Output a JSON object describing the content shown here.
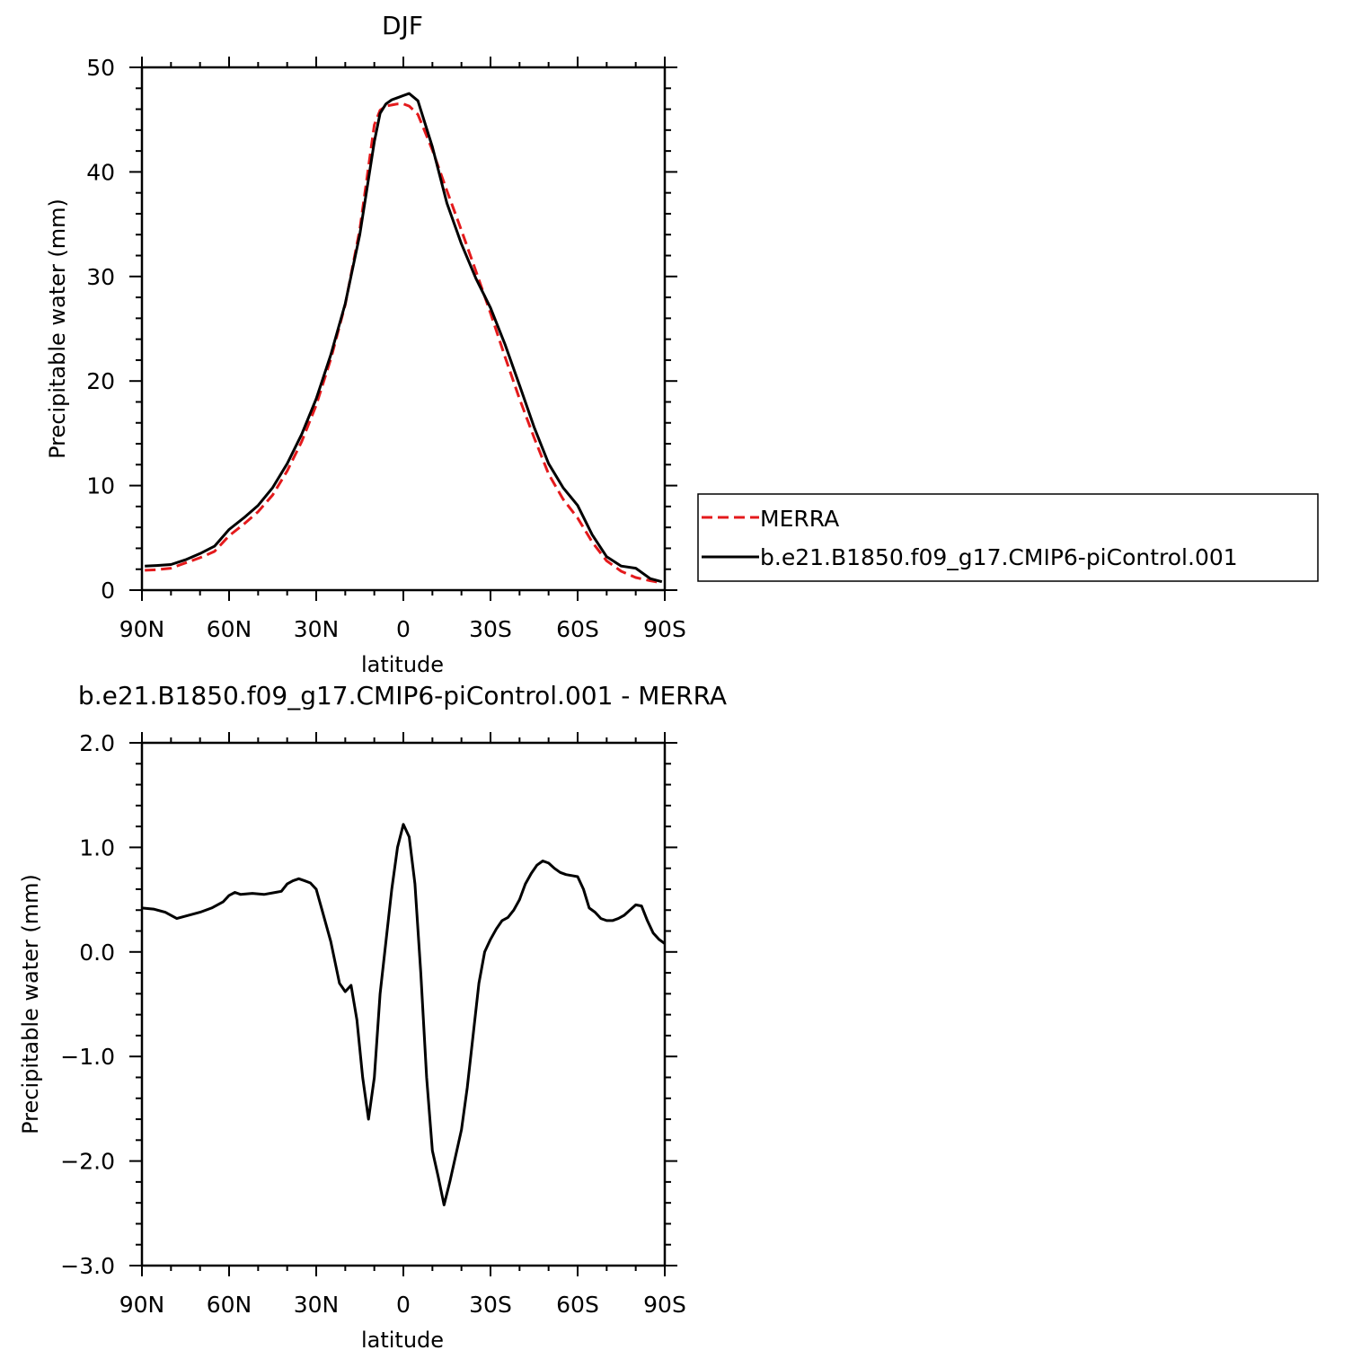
{
  "colors": {
    "merra": "#e41a1c",
    "model": "#000000"
  },
  "chart_data": [
    {
      "type": "line",
      "title": "DJF",
      "xlabel": "latitude",
      "ylabel": "Precipitable water (mm)",
      "xlim": [
        90,
        -90
      ],
      "ylim": [
        0,
        50
      ],
      "xticks": [
        90,
        60,
        30,
        0,
        -30,
        -60,
        -90
      ],
      "xtick_labels": [
        "90N",
        "60N",
        "30N",
        "0",
        "30S",
        "60S",
        "90S"
      ],
      "yticks": [
        0,
        10,
        20,
        30,
        40,
        50
      ],
      "ytick_labels": [
        "0",
        "10",
        "20",
        "30",
        "40",
        "50"
      ],
      "grid": false,
      "legend": {
        "placement": "right",
        "entries": [
          "MERRA",
          "b.e21.B1850.f09_g17.CMIP6-piControl.001"
        ]
      },
      "series": [
        {
          "name": "MERRA",
          "style": "dashed",
          "color": "#e41a1c",
          "x": [
            89,
            85,
            80,
            75,
            70,
            65,
            60,
            55,
            50,
            45,
            40,
            35,
            30,
            25,
            20,
            15,
            10,
            8,
            6,
            4,
            2,
            0,
            -2,
            -5,
            -10,
            -15,
            -20,
            -25,
            -30,
            -35,
            -40,
            -45,
            -50,
            -55,
            -60,
            -65,
            -70,
            -75,
            -80,
            -85,
            -89
          ],
          "y": [
            1.9,
            1.95,
            2.1,
            2.6,
            3.1,
            3.7,
            5.2,
            6.3,
            7.5,
            9.1,
            11.4,
            14.2,
            17.7,
            22.1,
            27.3,
            34.5,
            44.5,
            45.9,
            46.3,
            46.4,
            46.5,
            46.5,
            46.3,
            45.5,
            42.1,
            38.2,
            34.4,
            30.5,
            26.5,
            22.3,
            18.3,
            14.6,
            11.1,
            8.7,
            6.9,
            4.6,
            2.8,
            1.8,
            1.2,
            0.9,
            0.7
          ]
        },
        {
          "name": "b.e21.B1850.f09_g17.CMIP6-piControl.001",
          "style": "solid",
          "color": "#000000",
          "x": [
            89,
            85,
            80,
            75,
            70,
            65,
            60,
            55,
            50,
            45,
            40,
            35,
            30,
            25,
            20,
            15,
            10,
            8,
            6,
            4,
            2,
            0,
            -2,
            -5,
            -10,
            -15,
            -20,
            -25,
            -30,
            -35,
            -40,
            -45,
            -50,
            -55,
            -60,
            -65,
            -70,
            -75,
            -80,
            -85,
            -89
          ],
          "y": [
            2.3,
            2.35,
            2.45,
            2.9,
            3.5,
            4.2,
            5.8,
            6.9,
            8.1,
            9.8,
            12.1,
            14.9,
            18.3,
            22.5,
            27.4,
            34.0,
            42.9,
            45.6,
            46.5,
            46.9,
            47.1,
            47.3,
            47.5,
            46.8,
            42.4,
            37.0,
            33.1,
            29.8,
            27.0,
            23.5,
            19.6,
            15.6,
            12.1,
            9.8,
            8.1,
            5.3,
            3.2,
            2.3,
            2.1,
            1.1,
            0.8
          ]
        }
      ]
    },
    {
      "type": "line",
      "title": "b.e21.B1850.f09_g17.CMIP6-piControl.001 - MERRA",
      "xlabel": "latitude",
      "ylabel": "Precipitable water (mm)",
      "xlim": [
        90,
        -90
      ],
      "ylim": [
        -3.0,
        2.0
      ],
      "xticks": [
        90,
        60,
        30,
        0,
        -30,
        -60,
        -90
      ],
      "xtick_labels": [
        "90N",
        "60N",
        "30N",
        "0",
        "30S",
        "60S",
        "90S"
      ],
      "yticks": [
        -3.0,
        -2.0,
        -1.0,
        0.0,
        1.0,
        2.0
      ],
      "ytick_labels": [
        "-3.0",
        "-2.0",
        "-1.0",
        "0.0",
        "1.0",
        "2.0"
      ],
      "grid": false,
      "series": [
        {
          "style": "solid",
          "color": "#000000",
          "x": [
            90,
            86,
            82,
            78,
            74,
            70,
            66,
            62,
            60,
            58,
            56,
            52,
            48,
            44,
            42,
            40,
            38,
            36,
            34,
            32,
            30,
            28,
            25,
            22,
            20,
            18,
            16,
            14,
            12,
            10,
            8,
            6,
            4,
            2,
            0,
            -2,
            -4,
            -6,
            -8,
            -10,
            -12,
            -14,
            -16,
            -18,
            -20,
            -22,
            -24,
            -26,
            -28,
            -30,
            -32,
            -34,
            -36,
            -38,
            -40,
            -42,
            -44,
            -46,
            -48,
            -50,
            -52,
            -54,
            -56,
            -58,
            -60,
            -62,
            -64,
            -66,
            -68,
            -70,
            -72,
            -74,
            -76,
            -78,
            -80,
            -82,
            -84,
            -86,
            -88,
            -90
          ],
          "y": [
            0.42,
            0.41,
            0.38,
            0.32,
            0.35,
            0.38,
            0.42,
            0.48,
            0.54,
            0.57,
            0.55,
            0.56,
            0.55,
            0.57,
            0.58,
            0.65,
            0.68,
            0.7,
            0.68,
            0.66,
            0.6,
            0.4,
            0.1,
            -0.3,
            -0.38,
            -0.32,
            -0.65,
            -1.2,
            -1.6,
            -1.2,
            -0.4,
            0.1,
            0.6,
            1.0,
            1.22,
            1.1,
            0.65,
            -0.2,
            -1.2,
            -1.9,
            -2.15,
            -2.42,
            -2.2,
            -1.95,
            -1.7,
            -1.3,
            -0.8,
            -0.3,
            0.0,
            0.12,
            0.22,
            0.3,
            0.33,
            0.4,
            0.5,
            0.65,
            0.75,
            0.83,
            0.87,
            0.85,
            0.8,
            0.76,
            0.74,
            0.73,
            0.72,
            0.6,
            0.42,
            0.38,
            0.32,
            0.3,
            0.3,
            0.32,
            0.35,
            0.4,
            0.45,
            0.44,
            0.3,
            0.18,
            0.12,
            0.08
          ]
        }
      ]
    }
  ]
}
